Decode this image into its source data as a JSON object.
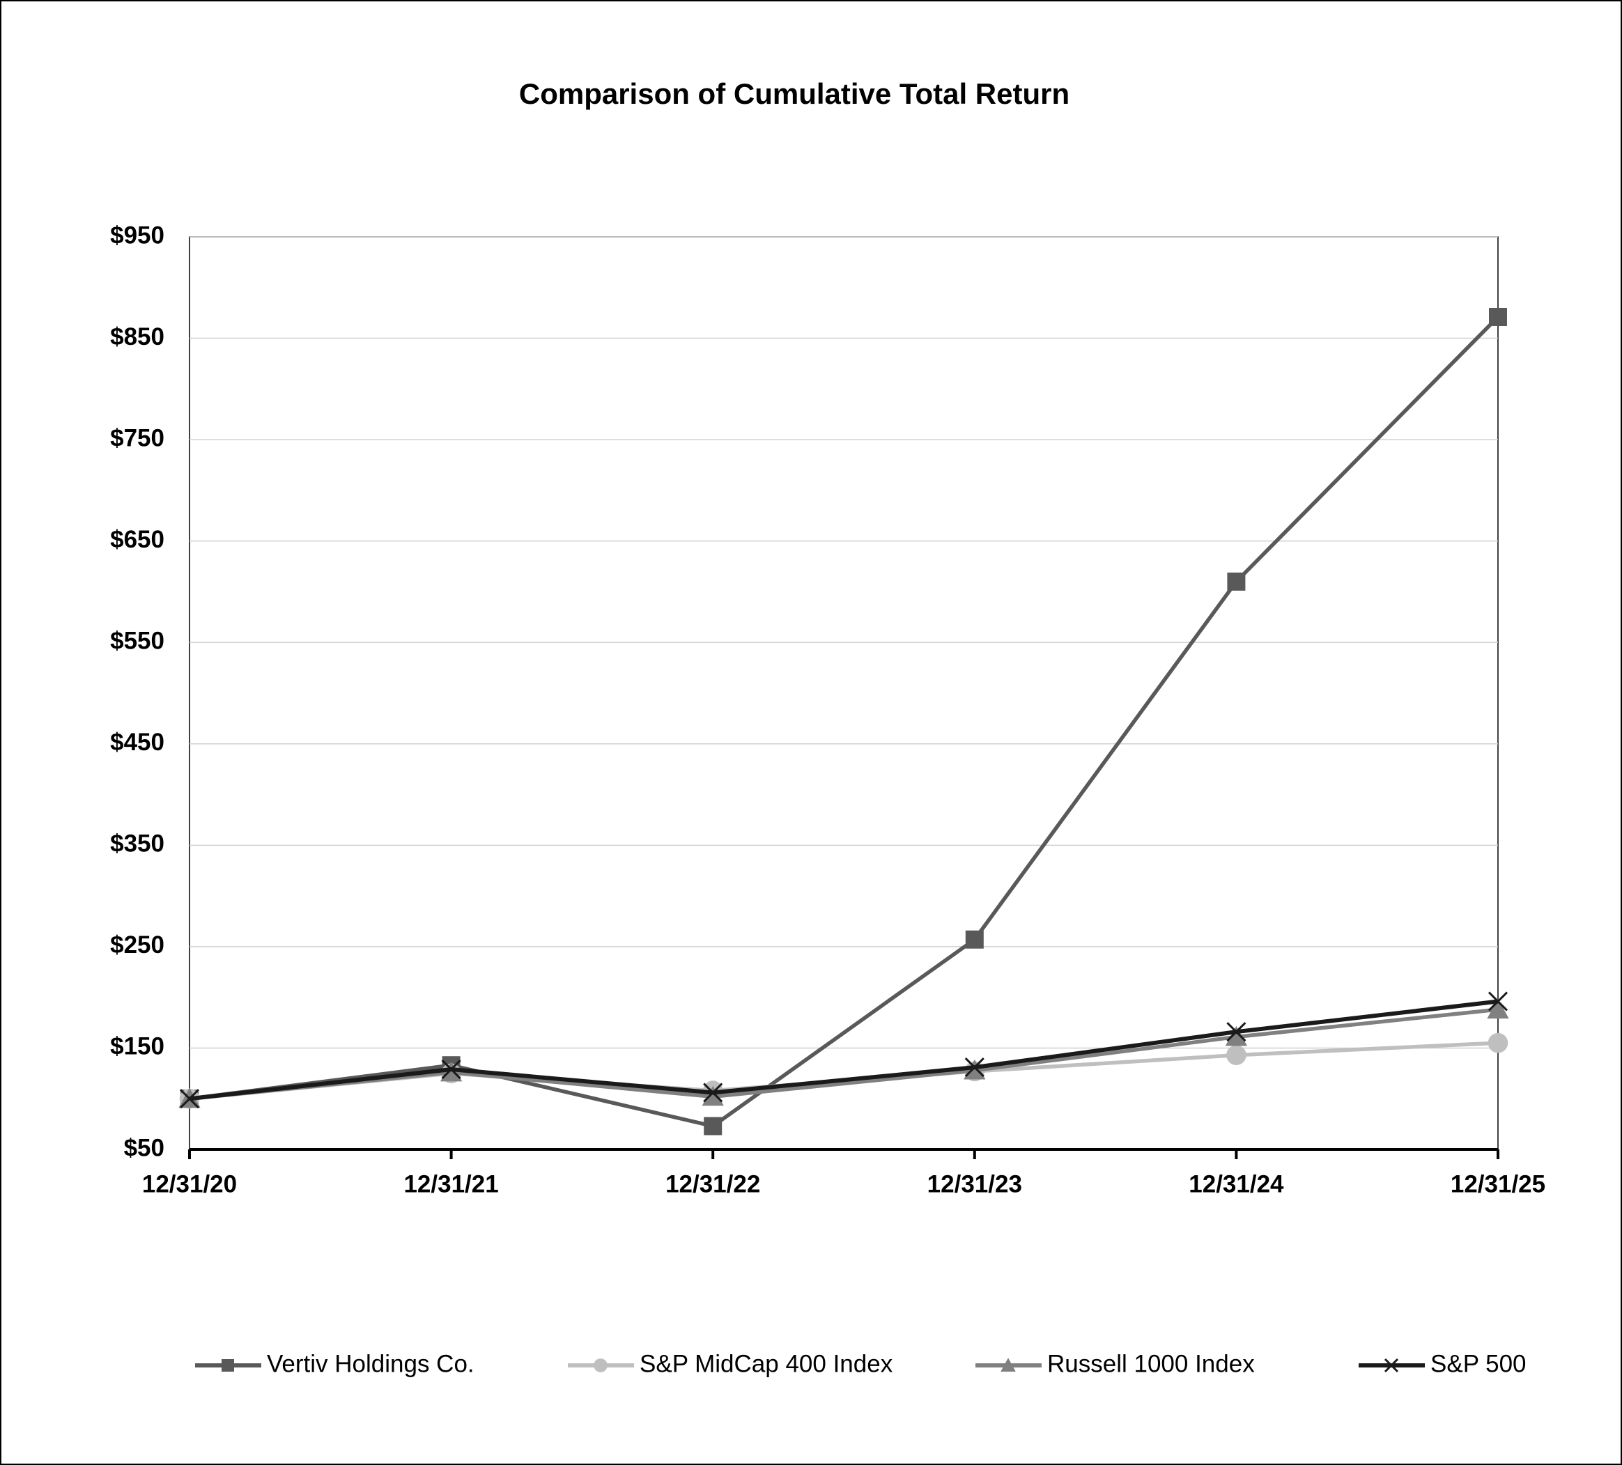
{
  "chart_data": {
    "type": "line",
    "title": "Comparison of Cumulative Total Return",
    "categories": [
      "12/31/20",
      "12/31/21",
      "12/31/22",
      "12/31/23",
      "12/31/24",
      "12/31/25"
    ],
    "series": [
      {
        "name": "Vertiv Holdings Co.",
        "color": "#595959",
        "marker": "square",
        "values": [
          100,
          133,
          73,
          257,
          610,
          871
        ]
      },
      {
        "name": "S&P MidCap 400 Index",
        "color": "#bfbfbf",
        "marker": "circle",
        "values": [
          100,
          125,
          108,
          127,
          143,
          155
        ]
      },
      {
        "name": "Russell 1000 Index",
        "color": "#808080",
        "marker": "triangle",
        "values": [
          100,
          126,
          102,
          128,
          161,
          188
        ]
      },
      {
        "name": "S&P 500",
        "color": "#1a1a1a",
        "marker": "x",
        "values": [
          100,
          129,
          106,
          131,
          166,
          196
        ]
      }
    ],
    "ylim": [
      50,
      950
    ],
    "yticks": [
      {
        "value": 50,
        "label": "$50"
      },
      {
        "value": 150,
        "label": "$150"
      },
      {
        "value": 250,
        "label": "$250"
      },
      {
        "value": 350,
        "label": "$350"
      },
      {
        "value": 450,
        "label": "$450"
      },
      {
        "value": 550,
        "label": "$550"
      },
      {
        "value": 650,
        "label": "$650"
      },
      {
        "value": 750,
        "label": "$750"
      },
      {
        "value": 850,
        "label": "$850"
      },
      {
        "value": 950,
        "label": "$950"
      }
    ],
    "grid": true,
    "legend": "bottom"
  }
}
